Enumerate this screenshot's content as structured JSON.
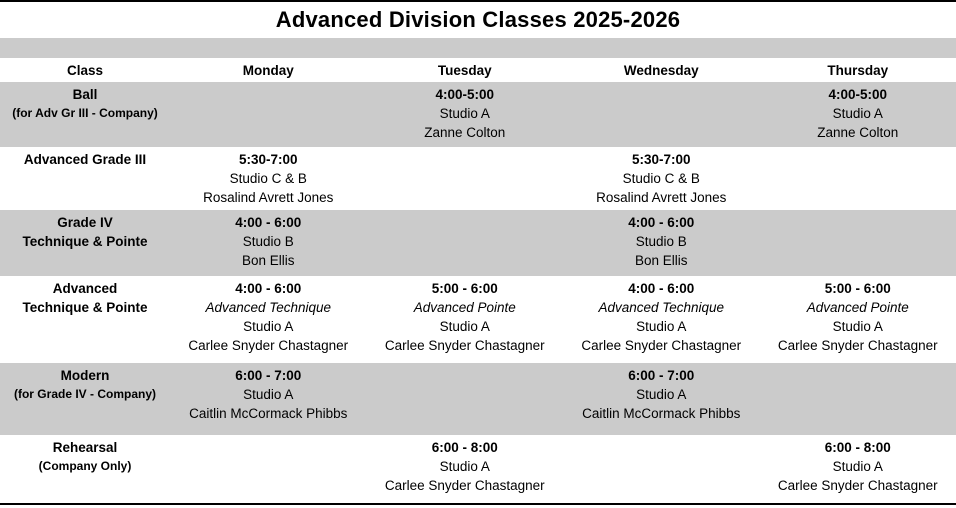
{
  "title": "Advanced Division Classes 2025-2026",
  "colors": {
    "row_shade": "#cbcbcb",
    "border": "#000000",
    "text": "#000000"
  },
  "columns": [
    "Class",
    "Monday",
    "Tuesday",
    "Wednesday",
    "Thursday"
  ],
  "rows": [
    {
      "name1": "Ball",
      "note": "(for Adv Gr III - Company)",
      "days": [
        {},
        {
          "time": "4:00-5:00",
          "studio": "Studio A",
          "teacher": "Zanne Colton"
        },
        {},
        {
          "time": "4:00-5:00",
          "studio": "Studio A",
          "teacher": "Zanne Colton"
        }
      ]
    },
    {
      "name1": "Advanced Grade III",
      "days": [
        {
          "time": "5:30-7:00",
          "studio": "Studio C & B",
          "teacher": "Rosalind Avrett Jones"
        },
        {},
        {
          "time": "5:30-7:00",
          "studio": "Studio C & B",
          "teacher": "Rosalind Avrett Jones"
        },
        {}
      ]
    },
    {
      "name1": "Grade IV",
      "name2": "Technique & Pointe",
      "days": [
        {
          "time": "4:00 - 6:00",
          "studio": "Studio B",
          "teacher": "Bon Ellis"
        },
        {},
        {
          "time": "4:00 - 6:00",
          "studio": "Studio B",
          "teacher": "Bon Ellis"
        },
        {}
      ]
    },
    {
      "name1": "Advanced",
      "name2": "Technique & Pointe",
      "days": [
        {
          "time": "4:00 - 6:00",
          "subtitle": "Advanced Technique",
          "studio": "Studio A",
          "teacher": "Carlee Snyder Chastagner"
        },
        {
          "time": "5:00 - 6:00",
          "subtitle": "Advanced Pointe",
          "studio": "Studio A",
          "teacher": "Carlee Snyder Chastagner"
        },
        {
          "time": "4:00 - 6:00",
          "subtitle": "Advanced Technique",
          "studio": "Studio A",
          "teacher": "Carlee Snyder Chastagner"
        },
        {
          "time": "5:00 - 6:00",
          "subtitle": "Advanced Pointe",
          "studio": "Studio A",
          "teacher": "Carlee Snyder Chastagner"
        }
      ]
    },
    {
      "name1": "Modern",
      "note": "(for Grade IV - Company)",
      "days": [
        {
          "time": "6:00 - 7:00",
          "studio": "Studio A",
          "teacher": "Caitlin McCormack Phibbs"
        },
        {},
        {
          "time": "6:00 - 7:00",
          "studio": "Studio A",
          "teacher": "Caitlin McCormack Phibbs"
        },
        {}
      ]
    },
    {
      "name1": "Rehearsal",
      "note": "(Company Only)",
      "days": [
        {},
        {
          "time": "6:00 - 8:00",
          "studio": "Studio A",
          "teacher": "Carlee Snyder Chastagner"
        },
        {},
        {
          "time": "6:00 - 8:00",
          "studio": "Studio A",
          "teacher": "Carlee Snyder Chastagner"
        }
      ]
    }
  ]
}
